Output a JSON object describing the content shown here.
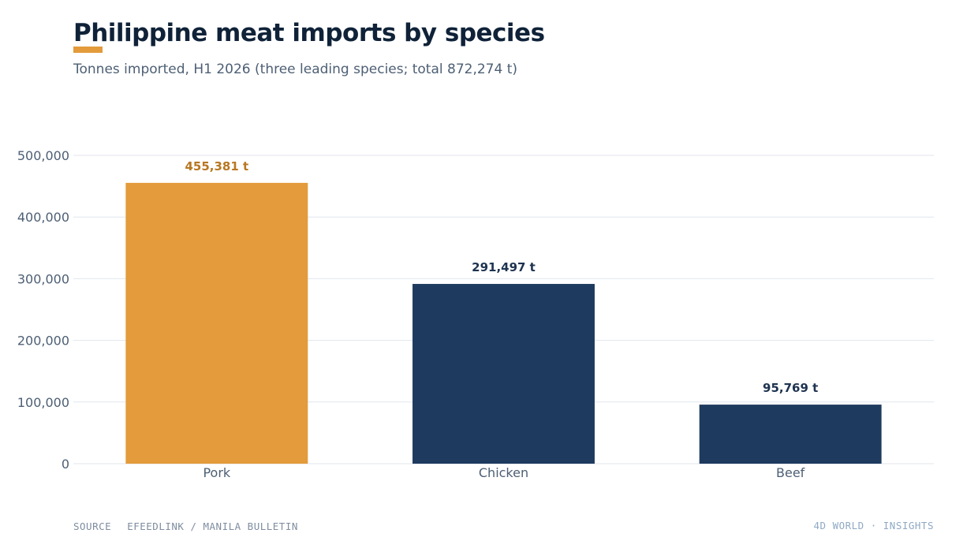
{
  "header": {
    "title": "Philippine meat imports by species",
    "subtitle": "Tonnes imported, H1 2026 (three leading species; total 872,274 t)"
  },
  "footer": {
    "source_label": "SOURCE",
    "source_text": "EFEEDLINK / MANILA BULLETIN",
    "brand": "4D WORLD · INSIGHTS"
  },
  "colors": {
    "highlight": "#e39b3b",
    "highlight_label": "#b87722",
    "default": "#1e3a5f",
    "default_label": "#1e3350",
    "grid": "#e1e6ee",
    "axis_text": "#4d5f74",
    "title": "#0f2238"
  },
  "chart_data": {
    "type": "bar",
    "title": "Philippine meat imports by species",
    "subtitle": "Tonnes imported, H1 2026 (three leading species; total 872,274 t)",
    "categories": [
      "Pork",
      "Chicken",
      "Beef"
    ],
    "values": [
      455381,
      291497,
      95769
    ],
    "value_labels": [
      "455,381 t",
      "291,497 t",
      "95,769 t"
    ],
    "highlighted": [
      "Pork"
    ],
    "xlabel": "",
    "ylabel": "",
    "ylim": [
      0,
      500000
    ],
    "yticks": [
      0,
      100000,
      200000,
      300000,
      400000,
      500000
    ],
    "ytick_labels": [
      "0",
      "100,000",
      "200,000",
      "300,000",
      "400,000",
      "500,000"
    ],
    "grid": true,
    "legend": "none"
  }
}
